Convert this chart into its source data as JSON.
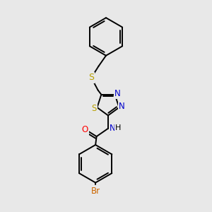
{
  "background_color": "#e8e8e8",
  "bond_color": "#000000",
  "figsize": [
    3.0,
    3.0
  ],
  "dpi": 100,
  "lw": 1.4,
  "atom_colors": {
    "S": "#b8a000",
    "N": "#0000cc",
    "O": "#ff0000",
    "Br": "#cc6600",
    "NH": "#008080",
    "C": "#000000",
    "H": "#000000"
  },
  "font_size": 8.5,
  "benz_r": 28,
  "thiad_r": 18
}
